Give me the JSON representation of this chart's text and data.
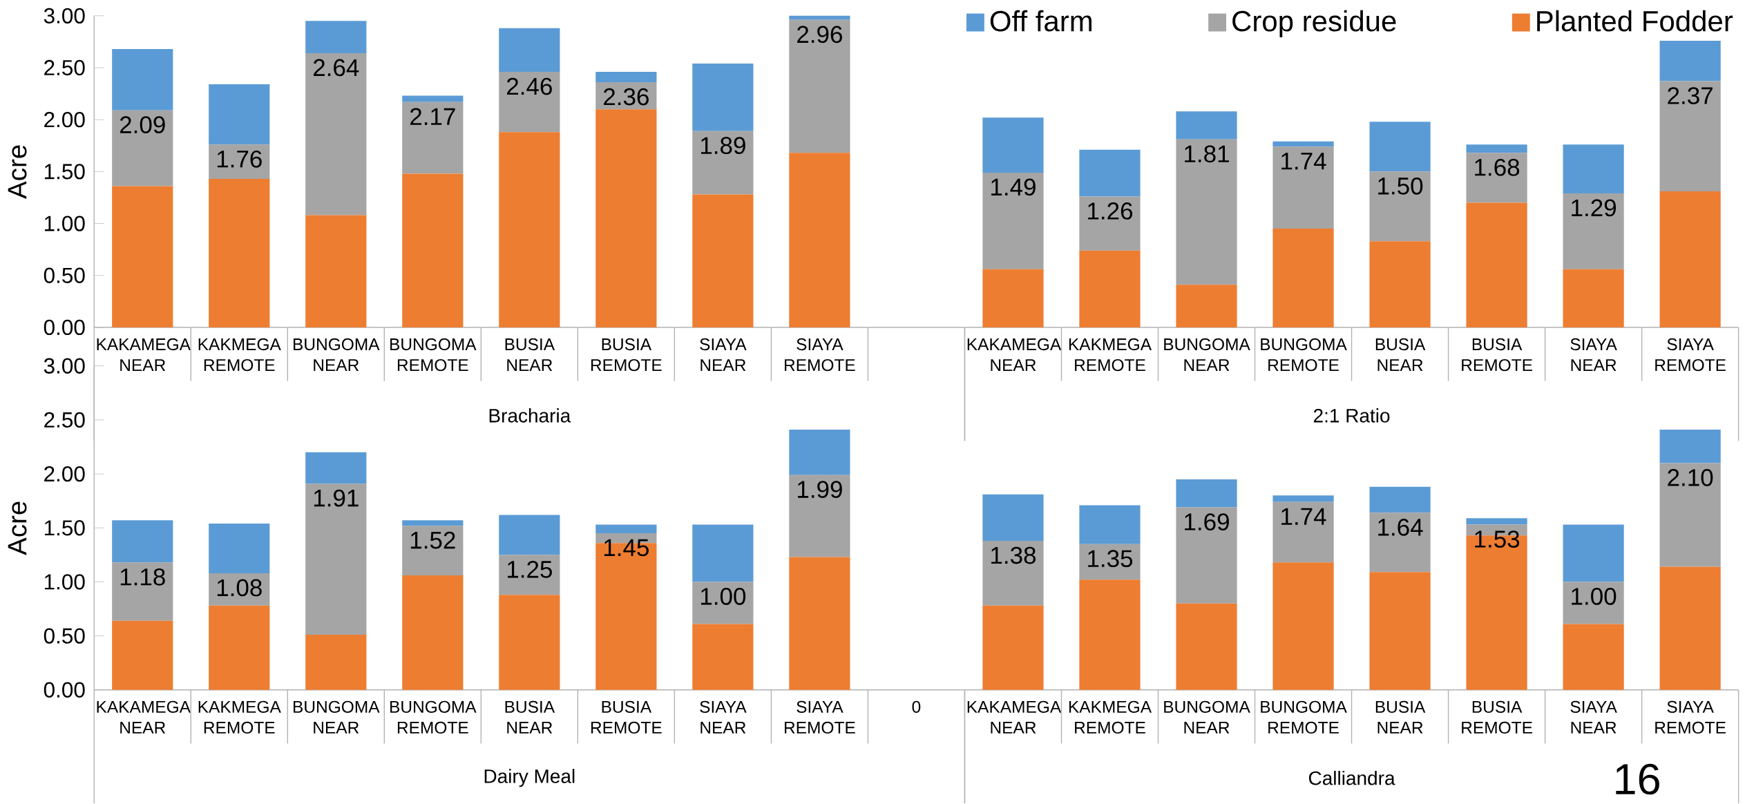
{
  "chart_data": [
    {
      "type": "bar",
      "stacked": true,
      "ylabel": "Acre",
      "xlabel": "Bracharia",
      "categories": [
        "KAKAMEGA NEAR",
        "KAKMEGA REMOTE",
        "BUNGOMA NEAR",
        "BUNGOMA REMOTE",
        "BUSIA NEAR",
        "BUSIA REMOTE",
        "SIAYA NEAR",
        "SIAYA REMOTE",
        null
      ],
      "ylim": [
        0,
        3
      ],
      "yticks": [
        {
          "value": 0,
          "label": "0.00"
        },
        {
          "value": 0.5,
          "label": "0.50"
        },
        {
          "value": 1,
          "label": "1.00"
        },
        {
          "value": 1.5,
          "label": "1.50"
        },
        {
          "value": 2,
          "label": "2.00"
        },
        {
          "value": 2.5,
          "label": "2.50"
        },
        {
          "value": 3,
          "label": "3.00"
        }
      ],
      "annotations": [
        {
          "text": "2.09",
          "x": "KAKAMEGA NEAR",
          "y": 2.09
        },
        {
          "text": "1.76",
          "x": "KAKMEGA REMOTE",
          "y": 1.76
        },
        {
          "text": "2.64",
          "x": "BUNGOMA NEAR",
          "y": 2.64
        },
        {
          "text": "2.17",
          "x": "BUNGOMA REMOTE",
          "y": 2.17
        },
        {
          "text": "2.46",
          "x": "BUSIA NEAR",
          "y": 2.46
        },
        {
          "text": "2.36",
          "x": "BUSIA REMOTE",
          "y": 2.36
        },
        {
          "text": "1.89",
          "x": "SIAYA NEAR",
          "y": 1.89
        },
        {
          "text": "2.96",
          "x": "SIAYA REMOTE",
          "y": 2.96
        }
      ],
      "series": [
        {
          "color": "#ed7d31",
          "values": [
            1.36,
            1.43,
            1.08,
            1.48,
            1.88,
            2.1,
            1.28,
            1.68,
            null
          ]
        },
        {
          "color": "#a5a5a5",
          "values": [
            0.73,
            0.33,
            1.56,
            0.69,
            0.58,
            0.26,
            0.61,
            1.28,
            null
          ]
        },
        {
          "color": "#5b9bd5",
          "values": [
            0.59,
            0.58,
            0.31,
            0.06,
            0.42,
            0.1,
            0.65,
            0.04,
            null
          ]
        }
      ]
    },
    {
      "type": "bar",
      "stacked": true,
      "xlabel": "2:1 Ratio",
      "legend": "top right",
      "tick_labels": "x",
      "categories": [
        "KAKAMEGA NEAR",
        "KAKMEGA REMOTE",
        "BUNGOMA NEAR",
        "BUNGOMA REMOTE",
        "BUSIA NEAR",
        "BUSIA REMOTE",
        "SIAYA NEAR",
        "SIAYA REMOTE"
      ],
      "ylim": [
        0,
        3
      ],
      "annotations": [
        {
          "text": "1.49",
          "x": "KAKAMEGA NEAR",
          "y": 1.49
        },
        {
          "text": "1.26",
          "x": "KAKMEGA REMOTE",
          "y": 1.26
        },
        {
          "text": "1.81",
          "x": "BUNGOMA NEAR",
          "y": 1.81
        },
        {
          "text": "1.74",
          "x": "BUNGOMA REMOTE",
          "y": 1.74
        },
        {
          "text": "1.50",
          "x": "BUSIA NEAR",
          "y": 1.5
        },
        {
          "text": "1.68",
          "x": "BUSIA REMOTE",
          "y": 1.68
        },
        {
          "text": "1.29",
          "x": "SIAYA NEAR",
          "y": 1.29
        },
        {
          "text": "2.37",
          "x": "SIAYA REMOTE",
          "y": 2.37
        }
      ],
      "series": [
        {
          "name": "Planted Fodder",
          "color": "#ed7d31",
          "values": [
            0.56,
            0.74,
            0.41,
            0.95,
            0.83,
            1.2,
            0.56,
            1.31
          ]
        },
        {
          "name": "Crop residue",
          "color": "#a5a5a5",
          "values": [
            0.93,
            0.52,
            1.4,
            0.79,
            0.67,
            0.48,
            0.73,
            1.06
          ]
        },
        {
          "name": "Off farm",
          "color": "#5b9bd5",
          "values": [
            0.53,
            0.45,
            0.27,
            0.05,
            0.48,
            0.08,
            0.47,
            0.39
          ]
        }
      ]
    },
    {
      "type": "bar",
      "stacked": true,
      "ylabel": "Acre",
      "xlabel": "Dairy Meal",
      "categories": [
        "KAKAMEGA NEAR",
        "KAKMEGA REMOTE",
        "BUNGOMA NEAR",
        "BUNGOMA REMOTE",
        "BUSIA NEAR",
        "BUSIA REMOTE",
        "SIAYA NEAR",
        "SIAYA REMOTE",
        "0"
      ],
      "ylim": [
        0,
        3
      ],
      "yticks": [
        {
          "value": 0,
          "label": "0.00"
        },
        {
          "value": 0.5,
          "label": "0.50"
        },
        {
          "value": 1,
          "label": "1.00"
        },
        {
          "value": 1.5,
          "label": "1.50"
        },
        {
          "value": 2,
          "label": "2.00"
        },
        {
          "value": 2.5,
          "label": "2.50"
        },
        {
          "value": 3,
          "label": "3.00"
        }
      ],
      "annotations": [
        {
          "text": "1.18",
          "x": "KAKAMEGA NEAR",
          "y": 1.18
        },
        {
          "text": "1.08",
          "x": "KAKMEGA REMOTE",
          "y": 1.08
        },
        {
          "text": "1.91",
          "x": "BUNGOMA NEAR",
          "y": 1.91
        },
        {
          "text": "1.52",
          "x": "BUNGOMA REMOTE",
          "y": 1.52
        },
        {
          "text": "1.25",
          "x": "BUSIA NEAR",
          "y": 1.25
        },
        {
          "text": "1.45",
          "x": "BUSIA REMOTE",
          "y": 1.45
        },
        {
          "text": "1.00",
          "x": "SIAYA NEAR",
          "y": 1.0
        },
        {
          "text": "1.99",
          "x": "SIAYA REMOTE",
          "y": 1.99
        }
      ],
      "series": [
        {
          "color": "#ed7d31",
          "values": [
            0.64,
            0.78,
            0.51,
            1.06,
            0.88,
            1.36,
            0.61,
            1.23,
            null
          ]
        },
        {
          "color": "#a5a5a5",
          "values": [
            0.54,
            0.3,
            1.4,
            0.46,
            0.37,
            0.09,
            0.39,
            0.76,
            null
          ]
        },
        {
          "color": "#5b9bd5",
          "values": [
            0.39,
            0.46,
            0.29,
            0.05,
            0.37,
            0.08,
            0.53,
            0.42,
            null
          ]
        }
      ]
    },
    {
      "type": "bar",
      "stacked": true,
      "xlabel": "Calliandra",
      "tick_labels": "x",
      "categories": [
        "KAKAMEGA NEAR",
        "KAKMEGA REMOTE",
        "BUNGOMA NEAR",
        "BUNGOMA REMOTE",
        "BUSIA NEAR",
        "BUSIA REMOTE",
        "SIAYA NEAR",
        "SIAYA REMOTE"
      ],
      "ylim": [
        0,
        3
      ],
      "annotations": [
        {
          "text": "1.38",
          "x": "KAKAMEGA NEAR",
          "y": 1.38
        },
        {
          "text": "1.35",
          "x": "KAKMEGA REMOTE",
          "y": 1.35
        },
        {
          "text": "1.69",
          "x": "BUNGOMA NEAR",
          "y": 1.69
        },
        {
          "text": "1.74",
          "x": "BUNGOMA REMOTE",
          "y": 1.74
        },
        {
          "text": "1.64",
          "x": "BUSIA NEAR",
          "y": 1.64
        },
        {
          "text": "1.53",
          "x": "BUSIA REMOTE",
          "y": 1.53
        },
        {
          "text": "1.00",
          "x": "SIAYA NEAR",
          "y": 1.0
        },
        {
          "text": "2.10",
          "x": "SIAYA REMOTE",
          "y": 2.1
        },
        "16"
      ],
      "series": [
        {
          "color": "#ed7d31",
          "values": [
            0.78,
            1.02,
            0.8,
            1.18,
            1.09,
            1.43,
            0.61,
            1.14
          ]
        },
        {
          "color": "#a5a5a5",
          "values": [
            0.6,
            0.33,
            0.89,
            0.56,
            0.55,
            0.1,
            0.39,
            0.96
          ]
        },
        {
          "color": "#5b9bd5",
          "values": [
            0.43,
            0.36,
            0.26,
            0.06,
            0.24,
            0.06,
            0.53,
            0.31
          ]
        }
      ]
    }
  ]
}
